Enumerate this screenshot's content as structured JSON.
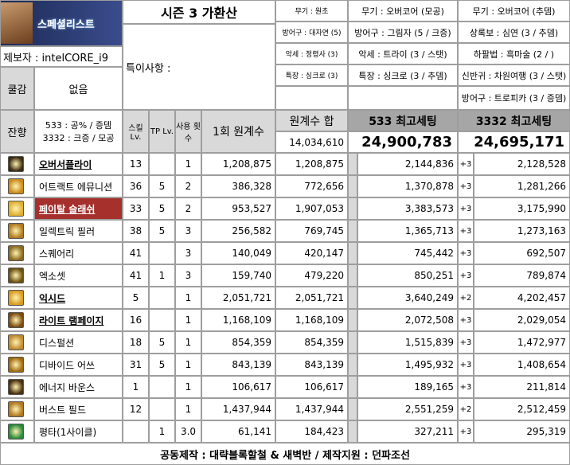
{
  "header": {
    "logo_text": "스페셜리스트",
    "title": "시즌 3 가환산",
    "author": "제보자 : intelCORE_i9",
    "special_notes_label": "특이사항 :",
    "costume_label": "쿨감",
    "costume_value": "없음",
    "residual_label": "잔향",
    "residual_value_1": "533 : 공% / 증뎀",
    "residual_value_2": "3332 : 크증 / 모공"
  },
  "gear_left": [
    "무기 : 원초",
    "방어구 : 대자연 (5)",
    "악세 : 정령사 (3)",
    "특장 : 싱크로 (3)"
  ],
  "gear_mid": [
    "무기 : 오버코어 (모공)",
    "방어구 : 그림자 (5 / 크증)",
    "악세 : 트라이 (3 / 스탯)",
    "특장 : 싱크로 (3 / 추뎀)"
  ],
  "gear_right": [
    "무기 : 오버코어 (추뎀)",
    "상록보 : 심연 (3 / 추뎀)",
    "하팔법 : 흑마술 (2 / )",
    "신반귀 : 차원여행 (3 / 스탯)",
    "방어구 : 트로피카 (3 / 증뎀)"
  ],
  "columns": {
    "skill_lv": "스킬 Lv.",
    "tp_lv": "TP Lv.",
    "uses": "사용 횟수",
    "per_hit": "1회 원계수",
    "sum_label": "원계수 합",
    "sum_total": "14,034,610",
    "set533_label": "533 최고세팅",
    "set533_total": "24,900,783",
    "set3332_label": "3332 최고세팅",
    "set3332_total": "24,695,171"
  },
  "skills": [
    {
      "name": "오버서플라이",
      "style": "bold-ul",
      "lv": "13",
      "tp": "",
      "uses": "1",
      "per": "1,208,875",
      "sum": "1,208,875",
      "s533": "2,144,836",
      "mark": "+3",
      "s3332": "2,128,528",
      "icon": "#3a2a10"
    },
    {
      "name": "어트랙트 에뮤니션",
      "style": "",
      "lv": "36",
      "tp": "5",
      "uses": "2",
      "per": "386,328",
      "sum": "772,656",
      "s533": "1,370,878",
      "mark": "+3",
      "s3332": "1,281,266",
      "icon": "#c98a1a"
    },
    {
      "name": "페이탈 슬래쉬",
      "style": "red",
      "lv": "33",
      "tp": "5",
      "uses": "2",
      "per": "953,527",
      "sum": "1,907,053",
      "s533": "3,383,573",
      "mark": "+3",
      "s3332": "3,175,990",
      "icon": "#e0b030"
    },
    {
      "name": "일렉트릭 필러",
      "style": "",
      "lv": "38",
      "tp": "5",
      "uses": "3",
      "per": "256,582",
      "sum": "769,745",
      "s533": "1,365,713",
      "mark": "+3",
      "s3332": "1,273,163",
      "icon": "#b07a20"
    },
    {
      "name": "스퀘어리",
      "style": "",
      "lv": "41",
      "tp": "",
      "uses": "3",
      "per": "140,049",
      "sum": "420,147",
      "s533": "745,442",
      "mark": "+3",
      "s3332": "692,507",
      "icon": "#8a6a20"
    },
    {
      "name": "엑소셋",
      "style": "",
      "lv": "41",
      "tp": "1",
      "uses": "3",
      "per": "159,740",
      "sum": "479,220",
      "s533": "850,251",
      "mark": "+3",
      "s3332": "789,874",
      "icon": "#6a5010"
    },
    {
      "name": "익시드",
      "style": "bold-ul",
      "lv": "5",
      "tp": "",
      "uses": "1",
      "per": "2,051,721",
      "sum": "2,051,721",
      "s533": "3,640,249",
      "mark": "+2",
      "s3332": "4,202,457",
      "icon": "#d89a20"
    },
    {
      "name": "라이트 램페이지",
      "style": "bold-ul",
      "lv": "16",
      "tp": "",
      "uses": "1",
      "per": "1,168,109",
      "sum": "1,168,109",
      "s533": "2,072,508",
      "mark": "+3",
      "s3332": "2,029,054",
      "icon": "#7a4a10"
    },
    {
      "name": "디스펄션",
      "style": "",
      "lv": "18",
      "tp": "5",
      "uses": "1",
      "per": "854,359",
      "sum": "854,359",
      "s533": "1,515,839",
      "mark": "+3",
      "s3332": "1,472,977",
      "icon": "#c08a30"
    },
    {
      "name": "디바이드 어쓰",
      "style": "",
      "lv": "31",
      "tp": "5",
      "uses": "1",
      "per": "843,139",
      "sum": "843,139",
      "s533": "1,495,932",
      "mark": "+3",
      "s3332": "1,408,654",
      "icon": "#a06a10"
    },
    {
      "name": "에너지 바운스",
      "style": "",
      "lv": "1",
      "tp": "",
      "uses": "1",
      "per": "106,617",
      "sum": "106,617",
      "s533": "189,165",
      "mark": "+3",
      "s3332": "211,814",
      "icon": "#4a3010"
    },
    {
      "name": "버스트 필드",
      "style": "",
      "lv": "12",
      "tp": "",
      "uses": "1",
      "per": "1,437,944",
      "sum": "1,437,944",
      "s533": "2,551,259",
      "mark": "+2",
      "s3332": "2,512,459",
      "icon": "#b07820"
    },
    {
      "name": "평타(1사이클)",
      "style": "",
      "lv": "",
      "tp": "1",
      "uses": "3.0",
      "per": "61,141",
      "sum": "184,423",
      "s533": "327,211",
      "mark": "+3",
      "s3332": "295,319",
      "icon": "#2a8a3a"
    }
  ],
  "footer": "공동제작 : 대략블록할철 & 새벽반 / 제작지원 : 던파조선"
}
